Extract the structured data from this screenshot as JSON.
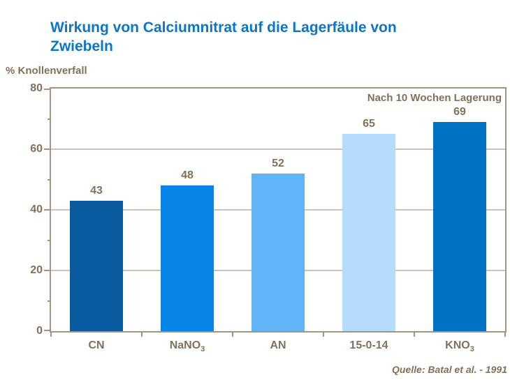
{
  "title": "Wirkung von Calciumnitrat auf die Lagerfäule von Zwiebeln",
  "axis_label": "% Knollenverfall",
  "annotation": "Nach 10 Wochen Lagerung",
  "source": "Quelle: Batal et al. - 1991",
  "colors": {
    "title_text": "#0b75c7",
    "label_text": "#82705a",
    "axis_line": "#a3937f",
    "gridline": "#cbc1b6",
    "bars": [
      "#095a9e",
      "#0784e8",
      "#61b5f6",
      "#b5dcfb",
      "#0072c3"
    ]
  },
  "chart_data": {
    "type": "bar",
    "title": "Wirkung von Calciumnitrat auf die Lagerfäule von Zwiebeln",
    "categories": [
      {
        "base": "CN",
        "sub": ""
      },
      {
        "base": "NaNO",
        "sub": "3"
      },
      {
        "base": "AN",
        "sub": ""
      },
      {
        "base": "15-0-14",
        "sub": ""
      },
      {
        "base": "KNO",
        "sub": "3"
      }
    ],
    "values": [
      43,
      48,
      52,
      65,
      69
    ],
    "xlabel": "",
    "ylabel": "% Knollenverfall",
    "ylim": [
      0,
      80
    ],
    "yticks_major": [
      0,
      20,
      40,
      60,
      80
    ],
    "yticks_minor": [
      10,
      30,
      50,
      70
    ],
    "grid": "horizontal-major",
    "legend": "none",
    "annotation": "Nach 10 Wochen Lagerung",
    "source": "Quelle: Batal et al. - 1991"
  }
}
